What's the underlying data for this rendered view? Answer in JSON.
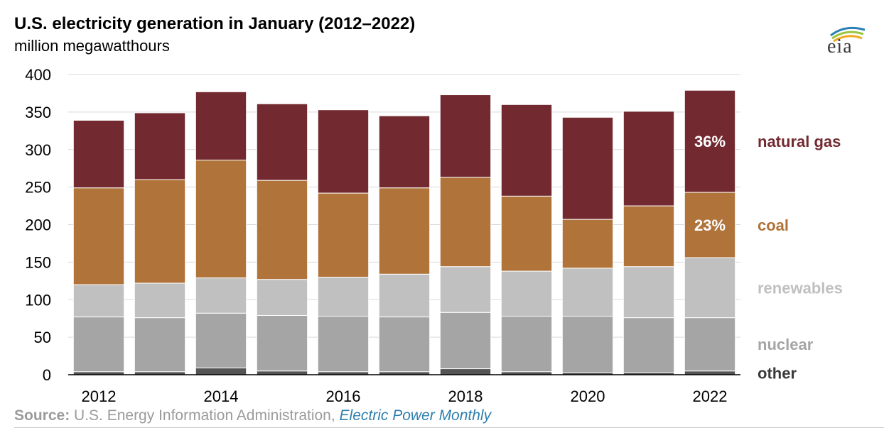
{
  "title": "U.S. electricity generation in January (2012–2022)",
  "subtitle": "million megawatthours",
  "logo_text": "eia",
  "source": {
    "label": "Source:",
    "text": " U.S. Energy Information Administration, ",
    "publication": "Electric Power Monthly"
  },
  "colors": {
    "natural_gas": "#722a30",
    "coal": "#b0733a",
    "renewables": "#c0c0c0",
    "nuclear": "#a5a5a5",
    "other": "#545454",
    "grid": "#d9d9d9",
    "label_white": "#ffffff"
  },
  "chart_data": {
    "type": "bar",
    "stacked": true,
    "categories": [
      "2012",
      "2013",
      "2014",
      "2015",
      "2016",
      "2017",
      "2018",
      "2019",
      "2020",
      "2021",
      "2022"
    ],
    "x_tick_labels": [
      "2012",
      "2014",
      "2016",
      "2018",
      "2020",
      "2022"
    ],
    "ylim": [
      0,
      400
    ],
    "yticks": [
      0,
      50,
      100,
      150,
      200,
      250,
      300,
      350,
      400
    ],
    "grid": true,
    "legend_placement": "right",
    "series": [
      {
        "name": "other",
        "values": [
          4,
          4,
          9,
          5,
          4,
          4,
          8,
          4,
          3,
          3,
          5
        ]
      },
      {
        "name": "nuclear",
        "values": [
          73,
          72,
          73,
          74,
          74,
          73,
          75,
          74,
          75,
          73,
          71
        ]
      },
      {
        "name": "renewables",
        "values": [
          43,
          46,
          47,
          48,
          52,
          57,
          61,
          60,
          64,
          68,
          80
        ]
      },
      {
        "name": "coal",
        "values": [
          129,
          138,
          157,
          132,
          112,
          115,
          119,
          100,
          65,
          81,
          87
        ]
      },
      {
        "name": "natural gas",
        "values": [
          90,
          89,
          91,
          102,
          111,
          96,
          110,
          122,
          136,
          126,
          136
        ]
      }
    ],
    "annotations": [
      {
        "category": "2022",
        "series": "natural gas",
        "text": "36%"
      },
      {
        "category": "2022",
        "series": "coal",
        "text": "23%"
      }
    ]
  }
}
